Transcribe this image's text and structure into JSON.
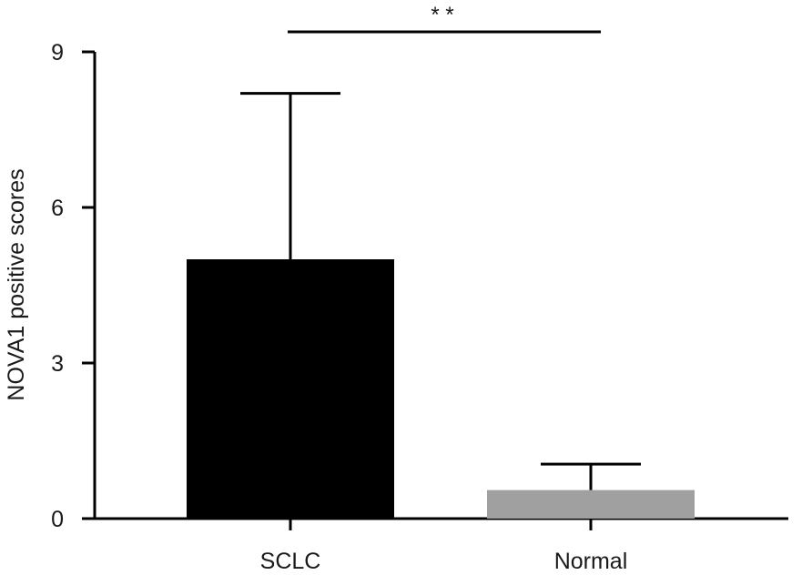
{
  "chart_data": {
    "type": "bar",
    "categories": [
      "SCLC",
      "Normal"
    ],
    "values": [
      5.0,
      0.55
    ],
    "error_upper": [
      8.2,
      1.05
    ],
    "bar_colors": [
      "#000000",
      "#a0a0a0"
    ],
    "ylabel": "NOVA1 positive scores",
    "ylim": [
      0,
      9
    ],
    "yticks": [
      0,
      3,
      6,
      9
    ],
    "ytick_labels": [
      "0",
      "3",
      "6",
      "9"
    ],
    "significance": {
      "between": [
        0,
        1
      ],
      "label": "* *"
    },
    "grid": false
  }
}
